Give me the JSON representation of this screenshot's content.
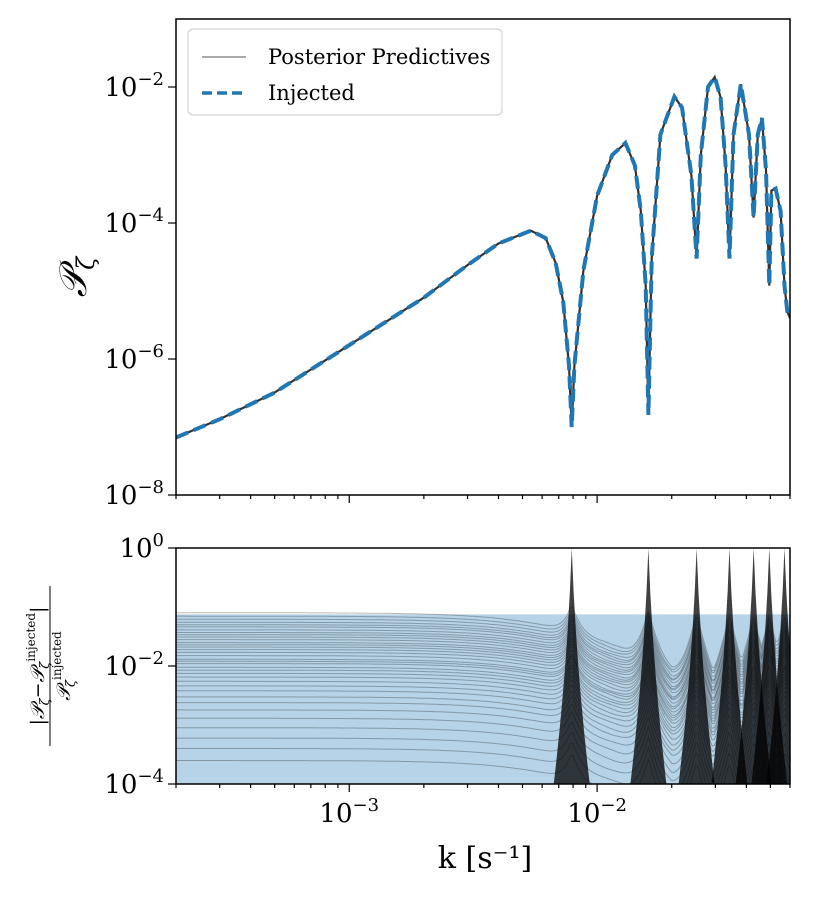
{
  "chart_data": [
    {
      "type": "line",
      "panel": "top",
      "xscale": "log",
      "yscale": "log",
      "xlim": [
        0.0002,
        0.06
      ],
      "ylim": [
        1e-08,
        0.1
      ],
      "ylabel": "𝒫",
      "ylabel_sub": "ζ",
      "ytick_values": [
        1e-08,
        1e-06,
        0.0001,
        0.01
      ],
      "ytick_labels": [
        {
          "base": "10",
          "exp": "−8"
        },
        {
          "base": "10",
          "exp": "−6"
        },
        {
          "base": "10",
          "exp": "−4"
        },
        {
          "base": "10",
          "exp": "−2"
        }
      ],
      "legend": {
        "position": "top-left",
        "entries": [
          {
            "label": "Posterior Predictives",
            "style": "thin-gray-solid"
          },
          {
            "label": "Injected",
            "style": "blue-dashed"
          }
        ]
      },
      "series": [
        {
          "name": "Injected",
          "color": "#1f77b4",
          "dash": true,
          "points": [
            [
              0.0002,
              7e-08
            ],
            [
              0.0003,
              1.3e-07
            ],
            [
              0.0005,
              3.2e-07
            ],
            [
              0.001,
              1.6e-06
            ],
            [
              0.002,
              8e-06
            ],
            [
              0.003,
              2.4e-05
            ],
            [
              0.004,
              5e-05
            ],
            [
              0.0054,
              7.7e-05
            ],
            [
              0.0062,
              6e-05
            ],
            [
              0.0068,
              2.6e-05
            ],
            [
              0.0073,
              7e-06
            ],
            [
              0.0077,
              8e-07
            ],
            [
              0.0079,
              1e-07
            ],
            [
              0.0081,
              8e-07
            ],
            [
              0.0088,
              2e-05
            ],
            [
              0.01,
              0.00025
            ],
            [
              0.0115,
              0.001
            ],
            [
              0.013,
              0.0015
            ],
            [
              0.0142,
              0.0007
            ],
            [
              0.015,
              0.00015
            ],
            [
              0.0157,
              1.2e-05
            ],
            [
              0.0161,
              1.5e-07
            ],
            [
              0.0166,
              3e-05
            ],
            [
              0.018,
              0.002
            ],
            [
              0.0205,
              0.0072
            ],
            [
              0.022,
              0.005
            ],
            [
              0.024,
              0.0005
            ],
            [
              0.0252,
              3e-05
            ],
            [
              0.0262,
              0.001
            ],
            [
              0.028,
              0.01
            ],
            [
              0.0298,
              0.014
            ],
            [
              0.0315,
              0.007
            ],
            [
              0.033,
              0.0007
            ],
            [
              0.0342,
              3e-05
            ],
            [
              0.0355,
              0.002
            ],
            [
              0.038,
              0.011
            ],
            [
              0.041,
              0.002
            ],
            [
              0.0428,
              0.00012
            ],
            [
              0.0445,
              0.002
            ],
            [
              0.0462,
              0.0035
            ],
            [
              0.048,
              0.0006
            ],
            [
              0.0495,
              1.2e-05
            ],
            [
              0.0505,
              0.0003
            ],
            [
              0.0525,
              0.00032
            ],
            [
              0.055,
              0.00015
            ],
            [
              0.057,
              1.2e-05
            ],
            [
              0.0585,
              5e-06
            ],
            [
              0.06,
              4e-06
            ]
          ]
        }
      ]
    },
    {
      "type": "line",
      "panel": "bottom",
      "xscale": "log",
      "yscale": "log",
      "xlim": [
        0.0002,
        0.06
      ],
      "ylim": [
        0.0001,
        1
      ],
      "xlabel": "k [s⁻¹]",
      "ylabel": "|𝒫ζ − 𝒫ζ^injected| / 𝒫ζ^injected",
      "xtick_values": [
        0.001,
        0.01
      ],
      "xtick_labels": [
        {
          "base": "10",
          "exp": "−3"
        },
        {
          "base": "10",
          "exp": "−2"
        }
      ],
      "ytick_values": [
        0.0001,
        0.01,
        1
      ],
      "ytick_labels": [
        {
          "base": "10",
          "exp": "−4"
        },
        {
          "base": "10",
          "exp": "−2"
        },
        {
          "base": "10",
          "exp": "0"
        }
      ],
      "band": {
        "name": "Residual envelope",
        "upper": 0.075,
        "color": "#1f77b4"
      },
      "spikes": [
        0.0079,
        0.0161,
        0.0252,
        0.0342,
        0.0428,
        0.0495,
        0.057
      ],
      "residual_amplitudes": [
        0.08,
        0.07,
        0.062,
        0.055,
        0.05,
        0.046,
        0.041,
        0.037,
        0.034,
        0.031,
        0.028,
        0.025,
        0.023,
        0.021,
        0.019,
        0.017,
        0.015,
        0.013,
        0.012,
        0.011,
        0.0095,
        0.0085,
        0.0075,
        0.0065,
        0.0055,
        0.0046,
        0.0038,
        0.003,
        0.0024,
        0.0018,
        0.0013,
        0.0009,
        0.0006,
        0.0004,
        0.00025
      ]
    }
  ]
}
